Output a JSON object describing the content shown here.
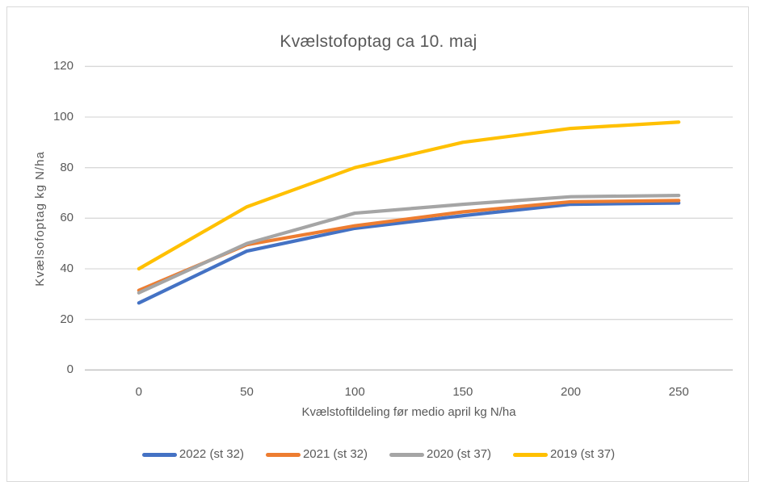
{
  "chart_data": {
    "type": "line",
    "title": "Kvælstofoptag ca 10. maj",
    "xlabel": "Kvælstoftildeling før medio april kg N/ha",
    "ylabel": "Kvælsofoptag kg N/ha",
    "categories": [
      0,
      50,
      100,
      150,
      200,
      250
    ],
    "series": [
      {
        "name": "2022 (st 32)",
        "color": "#4472C4",
        "values": [
          26.5,
          47,
          56,
          61,
          65.5,
          66
        ]
      },
      {
        "name": "2021 (st 32)",
        "color": "#ED7D31",
        "values": [
          31.5,
          49.5,
          57,
          62.5,
          66.5,
          67
        ]
      },
      {
        "name": "2020 (st 37)",
        "color": "#A5A5A5",
        "values": [
          30.5,
          50,
          62,
          65.5,
          68.5,
          69
        ]
      },
      {
        "name": "2019 (st 37)",
        "color": "#FFC000",
        "values": [
          40,
          64.5,
          80,
          90,
          95.5,
          98
        ]
      }
    ],
    "ylim": [
      0,
      120
    ],
    "ytick_step": 20,
    "xticks": [
      "0",
      "50",
      "100",
      "150",
      "200",
      "250"
    ],
    "yticks": [
      "0",
      "20",
      "40",
      "60",
      "80",
      "100",
      "120"
    ],
    "grid": true,
    "legend_position": "bottom"
  },
  "colors": {
    "text": "#595959",
    "gridline": "#D9D9D9",
    "axis_line": "#BFBFBF",
    "frame_border": "#D9D9D9",
    "background": "#FFFFFF"
  }
}
